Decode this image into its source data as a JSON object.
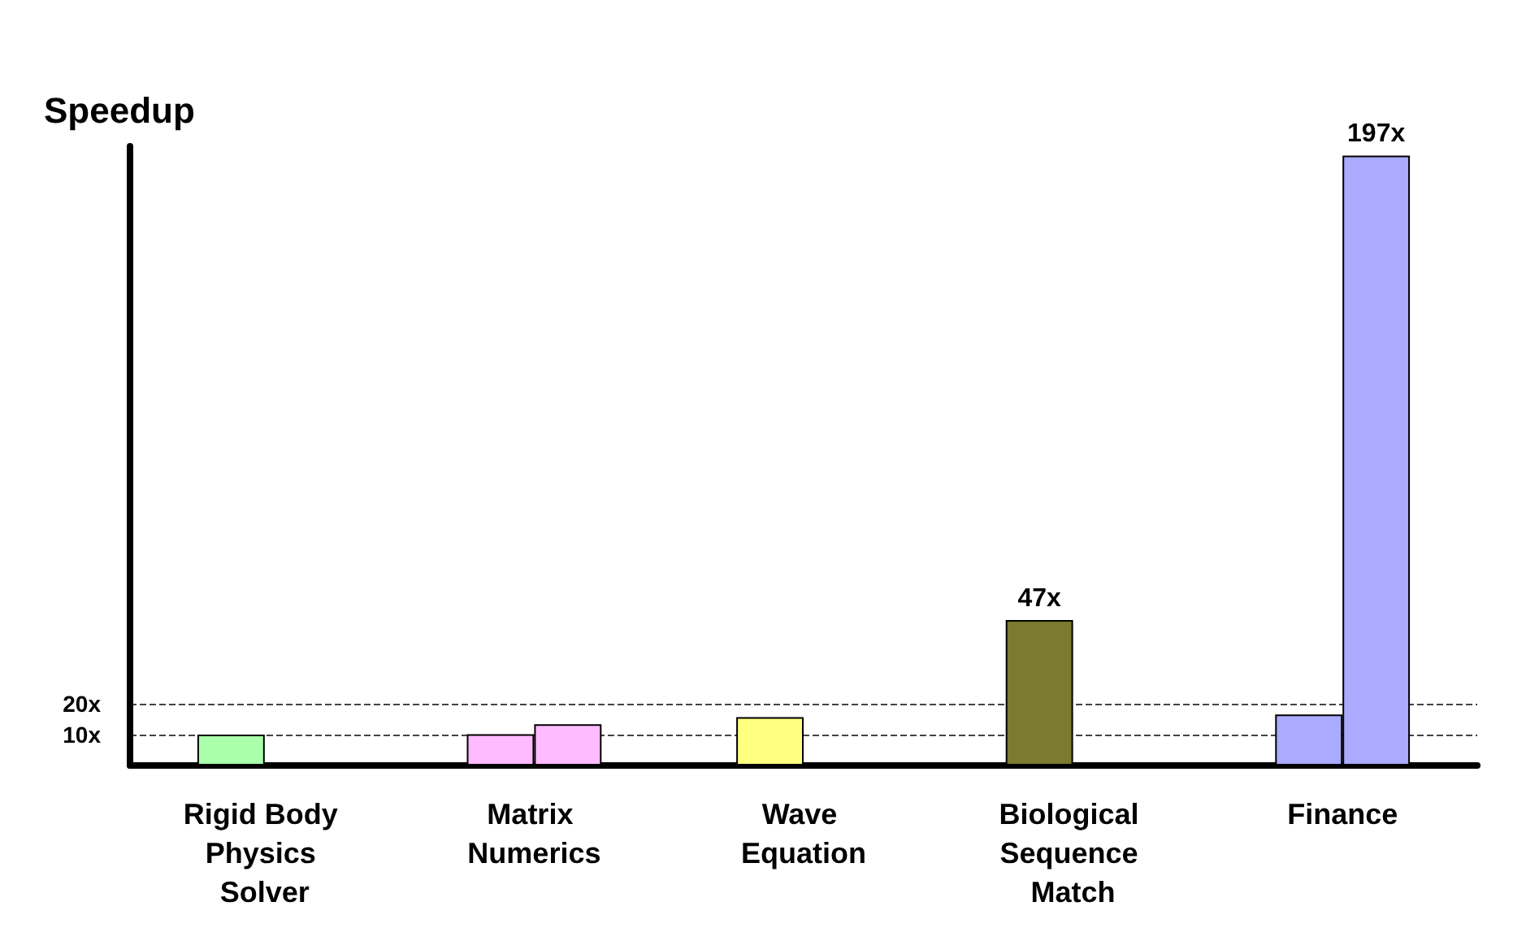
{
  "chart_data": {
    "type": "bar",
    "ylabel": "Speedup",
    "categories": [
      "Rigid Body Physics Solver",
      "Matrix Numerics",
      "Wave Equation",
      "Biological Sequence Match",
      "Finance"
    ],
    "series": [
      {
        "colors": [
          "#aaffaa",
          "#ffbbff",
          "#ffff80",
          "#7a7a30",
          "#aaaaff"
        ],
        "values": [
          10,
          10.1,
          15.6,
          47,
          16.5
        ],
        "value_labels": [
          null,
          null,
          null,
          "47x",
          null
        ]
      },
      {
        "colors": [
          "#aaffaa",
          "#ffbbff",
          "#ffff80",
          "#7a7a30",
          "#aaaaff"
        ],
        "values": [
          null,
          13.3,
          null,
          null,
          197
        ],
        "value_labels": [
          null,
          null,
          null,
          null,
          "197x"
        ]
      }
    ],
    "ylim": [
      0,
      200
    ],
    "yticks": [
      {
        "value": 10,
        "label": "10x"
      },
      {
        "value": 20,
        "label": "20x"
      }
    ],
    "grid": "y"
  }
}
